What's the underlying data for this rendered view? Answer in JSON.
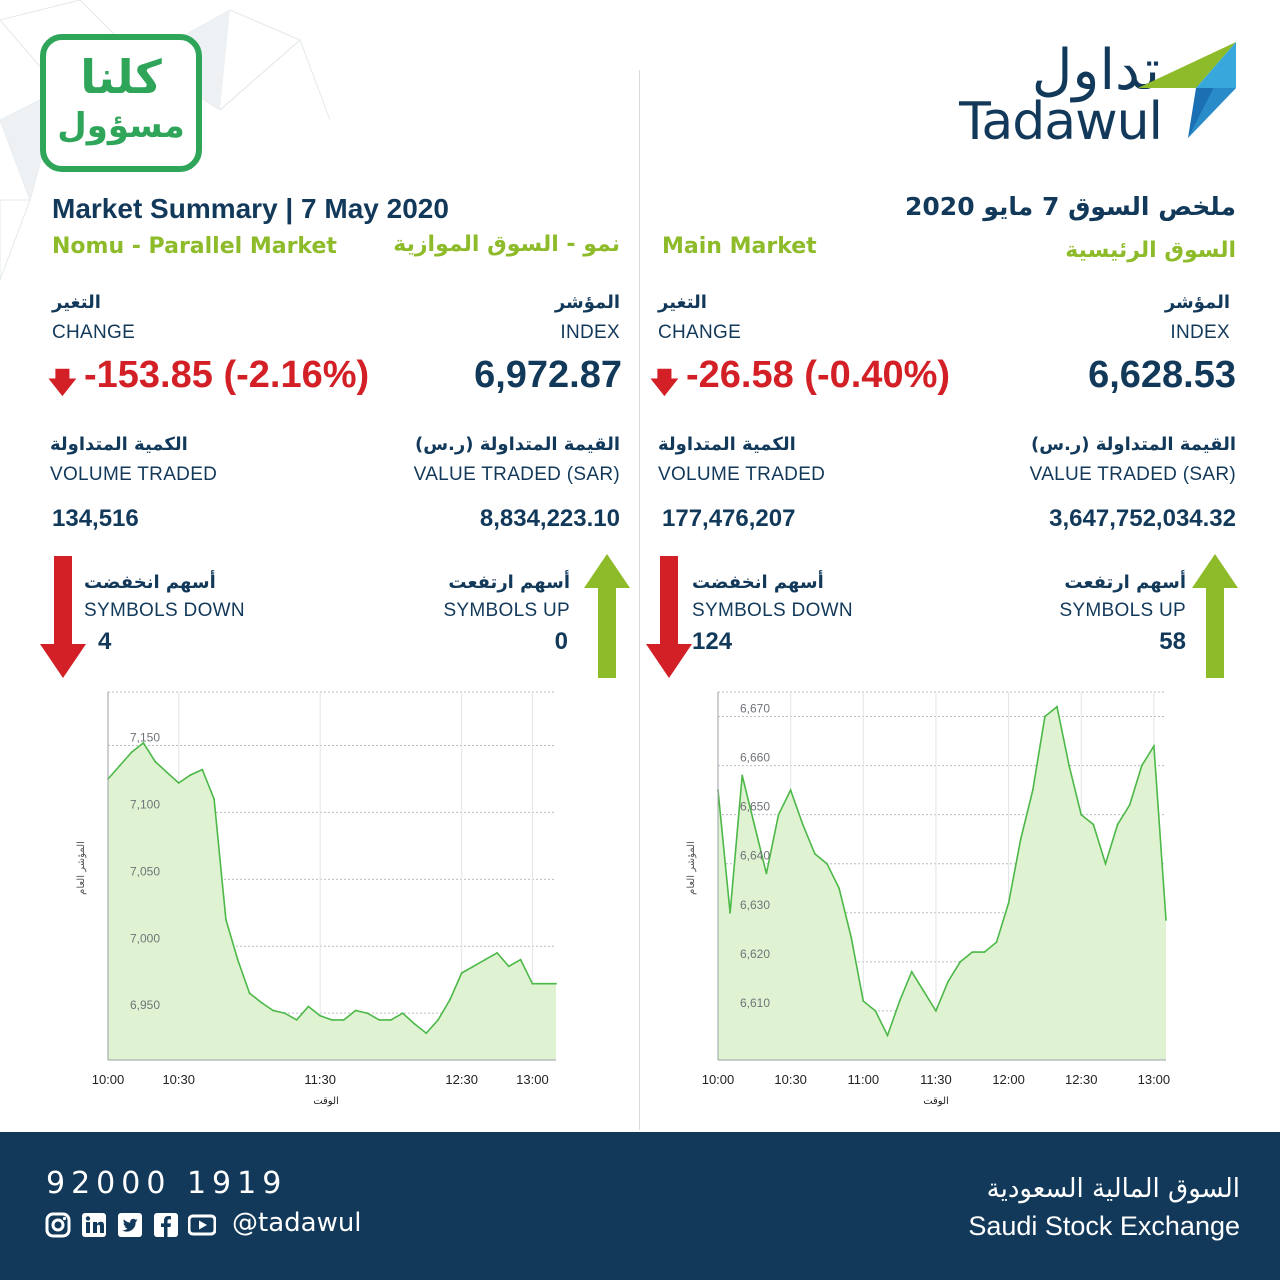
{
  "brand": {
    "campaign_line1": "كلنا",
    "campaign_line2": "مسؤول",
    "logo_ar": "تداول",
    "logo_en": "Tadawul"
  },
  "nomu": {
    "title_en": "Market Summary | 7 May 2020",
    "subtitle_en": "Nomu - Parallel Market",
    "subtitle_ar": "نمو - السوق الموازية",
    "change_label_ar": "التغير",
    "change_label_en": "CHANGE",
    "change_arrow": "🡇",
    "change_value": "-153.85 (-2.16%)",
    "index_label_ar": "المؤشر",
    "index_label_en": "INDEX",
    "index_value": "6,972.87",
    "volume_label_ar": "الكمية المتداولة",
    "volume_label_en": "VOLUME TRADED",
    "volume_value": "134,516",
    "value_label_ar": "القيمة المتداولة (ر.س)",
    "value_label_en": "VALUE TRADED (SAR)",
    "value_value": "8,834,223.10",
    "down_label_ar": "أسهم انخفضت",
    "down_label_en": "SYMBOLS DOWN",
    "down_count": "4",
    "up_label_ar": "أسهم ارتفعت",
    "up_label_en": "SYMBOLS UP",
    "up_count": "0"
  },
  "main": {
    "title_ar": "ملخص السوق 7 مايو 2020",
    "subtitle_en": "Main Market",
    "subtitle_ar": "السوق الرئيسية",
    "change_label_ar": "التغير",
    "change_label_en": "CHANGE",
    "change_arrow": "🡇",
    "change_value": "-26.58 (-0.40%)",
    "index_label_ar": "المؤشر",
    "index_label_en": "INDEX",
    "index_value": "6,628.53",
    "volume_label_ar": "الكمية المتداولة",
    "volume_label_en": "VOLUME TRADED",
    "volume_value": "177,476,207",
    "value_label_ar": "القيمة المتداولة (ر.س)",
    "value_label_en": "VALUE TRADED (SAR)",
    "value_value": "3,647,752,034.32",
    "down_label_ar": "أسهم انخفضت",
    "down_label_en": "SYMBOLS DOWN",
    "down_count": "124",
    "up_label_ar": "أسهم ارتفعت",
    "up_label_en": "SYMBOLS UP",
    "up_count": "58"
  },
  "colors": {
    "navy": "#12395a",
    "green": "#8dbb2a",
    "red": "#d32027",
    "chart_line": "#4cb848",
    "chart_fill": "#dff3d2"
  },
  "chart_data": [
    {
      "type": "area",
      "ylabel": "المؤشر العام",
      "xlabel": "الوقت",
      "x": [
        "10:00",
        "10:05",
        "10:10",
        "10:15",
        "10:20",
        "10:25",
        "10:30",
        "10:35",
        "10:40",
        "10:45",
        "10:50",
        "10:55",
        "11:00",
        "11:05",
        "11:10",
        "11:15",
        "11:20",
        "11:25",
        "11:30",
        "11:35",
        "11:40",
        "11:45",
        "11:50",
        "11:55",
        "12:00",
        "12:05",
        "12:10",
        "12:15",
        "12:20",
        "12:25",
        "12:30",
        "12:35",
        "12:40",
        "12:45",
        "12:50",
        "12:55",
        "13:00",
        "13:05",
        "13:10"
      ],
      "values": [
        7125,
        7135,
        7145,
        7152,
        7138,
        7130,
        7122,
        7128,
        7132,
        7110,
        7020,
        6990,
        6965,
        6958,
        6952,
        6950,
        6945,
        6955,
        6948,
        6945,
        6945,
        6952,
        6950,
        6945,
        6945,
        6950,
        6942,
        6935,
        6945,
        6960,
        6980,
        6985,
        6990,
        6995,
        6985,
        6990,
        6972,
        6972,
        6972
      ],
      "ylim": [
        6915,
        7190
      ],
      "yticks": [
        6950,
        7000,
        7050,
        7100,
        7150
      ],
      "ytick_labels": [
        "6,950",
        "7,000",
        "7,050",
        "7,100",
        "7,150"
      ],
      "xticks": [
        "10:00",
        "10:30",
        "11:30",
        "12:30",
        "13:00"
      ],
      "grid": true
    },
    {
      "type": "area",
      "ylabel": "المؤشر العام",
      "xlabel": "الوقت",
      "x": [
        "10:00",
        "10:05",
        "10:10",
        "10:15",
        "10:20",
        "10:25",
        "10:30",
        "10:35",
        "10:40",
        "10:45",
        "10:50",
        "10:55",
        "11:00",
        "11:05",
        "11:10",
        "11:15",
        "11:20",
        "11:25",
        "11:30",
        "11:35",
        "11:40",
        "11:45",
        "11:50",
        "11:55",
        "12:00",
        "12:05",
        "12:10",
        "12:15",
        "12:20",
        "12:25",
        "12:30",
        "12:35",
        "12:40",
        "12:45",
        "12:50",
        "12:55",
        "13:00",
        "13:05"
      ],
      "values": [
        6655,
        6630,
        6658,
        6648,
        6638,
        6650,
        6655,
        6648,
        6642,
        6640,
        6635,
        6625,
        6612,
        6610,
        6605,
        6612,
        6618,
        6614,
        6610,
        6616,
        6620,
        6622,
        6622,
        6624,
        6632,
        6645,
        6655,
        6670,
        6672,
        6660,
        6650,
        6648,
        6640,
        6648,
        6652,
        6660,
        6664,
        6628.53
      ],
      "ylim": [
        6600,
        6675
      ],
      "yticks": [
        6610,
        6620,
        6630,
        6640,
        6650,
        6660,
        6670
      ],
      "ytick_labels": [
        "6,610",
        "6,620",
        "6,630",
        "6,640",
        "6,650",
        "6,660",
        "6,670"
      ],
      "xticks": [
        "10:00",
        "10:30",
        "11:00",
        "11:30",
        "12:00",
        "12:30",
        "13:00"
      ],
      "grid": true
    }
  ],
  "footer": {
    "phone": "92000 1919",
    "handle": "@tadawul",
    "social_icons": [
      "instagram-icon",
      "linkedin-icon",
      "twitter-icon",
      "facebook-icon",
      "youtube-icon"
    ],
    "exchange_ar": "السوق المالية السعودية",
    "exchange_en": "Saudi Stock Exchange"
  }
}
